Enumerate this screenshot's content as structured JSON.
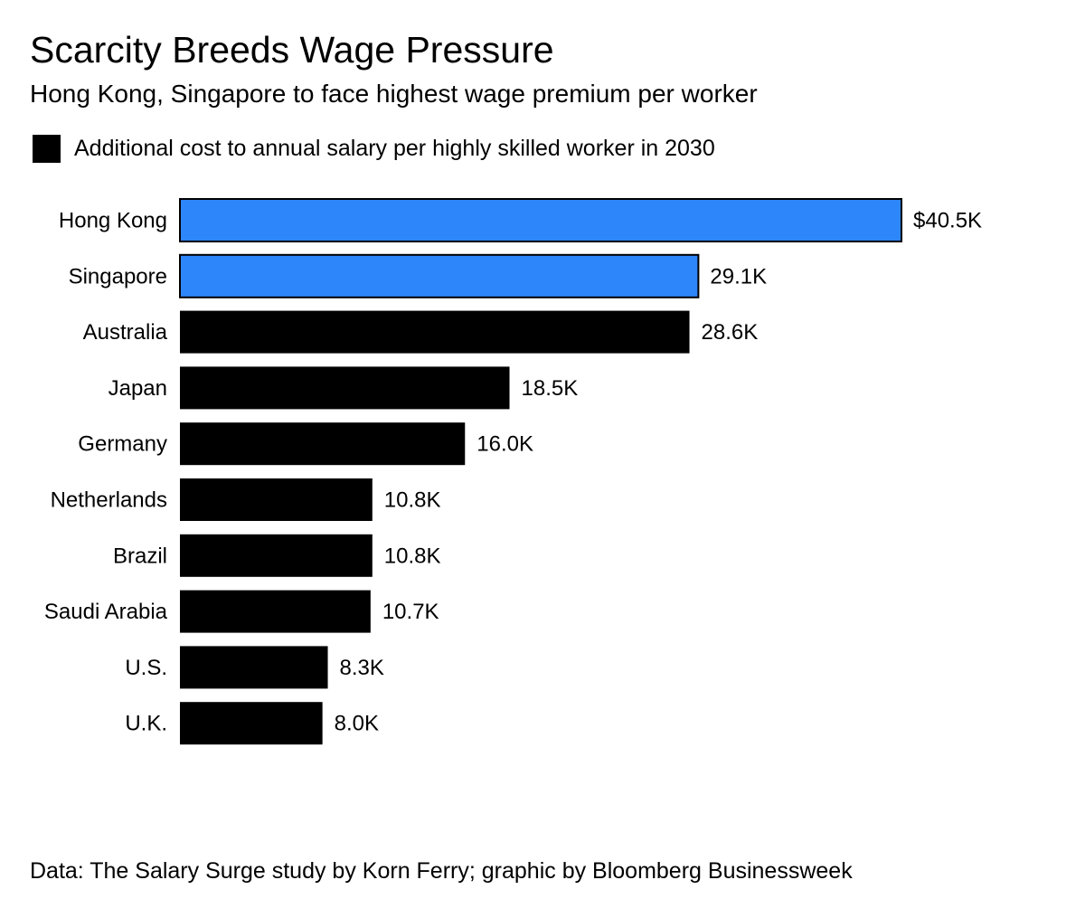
{
  "header": {
    "title": "Scarcity Breeds Wage Pressure",
    "subtitle": "Hong Kong, Singapore to face highest wage premium per worker"
  },
  "footer": {
    "source": "Data: The Salary Surge study by Korn Ferry; graphic by Bloomberg Businessweek"
  },
  "colors": {
    "highlight": "#2e86fb",
    "default": "#000000"
  },
  "chart_data": {
    "type": "bar",
    "orientation": "horizontal",
    "title": "Scarcity Breeds Wage Pressure",
    "subtitle": "Hong Kong, Singapore to face highest wage premium per worker",
    "categories": [
      "Hong Kong",
      "Singapore",
      "Australia",
      "Japan",
      "Germany",
      "Netherlands",
      "Brazil",
      "Saudi Arabia",
      "U.S.",
      "U.K."
    ],
    "series": [
      {
        "name": "Additional cost to annual salary per highly skilled worker in 2030",
        "values": [
          40.5,
          29.1,
          28.6,
          18.5,
          16.0,
          10.8,
          10.8,
          10.7,
          8.3,
          8.0
        ],
        "labels": [
          "$40.5K",
          "29.1K",
          "28.6K",
          "18.5K",
          "16.0K",
          "10.8K",
          "10.8K",
          "10.7K",
          "8.3K",
          "8.0K"
        ],
        "highlighted": [
          "Hong Kong",
          "Singapore"
        ]
      }
    ],
    "unit": "thousand US dollars",
    "xlim": [
      0,
      40.5
    ],
    "grid": false,
    "legend_position": "top-left"
  }
}
